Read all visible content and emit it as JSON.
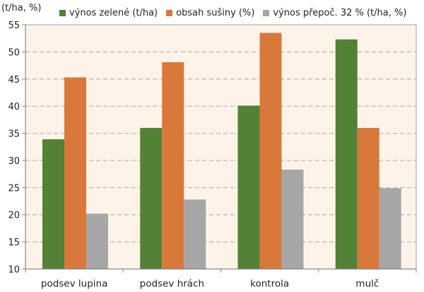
{
  "chart_data": {
    "type": "bar",
    "title": "",
    "xlabel": "",
    "ylabel": "(t/ha, %)",
    "ylim": [
      10,
      55
    ],
    "yticks": [
      10,
      15,
      20,
      25,
      30,
      35,
      40,
      45,
      50,
      55
    ],
    "grid": true,
    "legend_position": "top",
    "categories": [
      "podsev lupina",
      "podsev hrách",
      "kontrola",
      "mulč"
    ],
    "series": [
      {
        "name": "výnos zelené (t/ha)",
        "color": "#538135",
        "values": [
          33.9,
          36.0,
          40.1,
          52.3
        ]
      },
      {
        "name": "obsah sušiny (%)",
        "color": "#d8793b",
        "values": [
          45.3,
          48.1,
          53.5,
          36.0
        ]
      },
      {
        "name": "výnos přepoč. 32 % (t/ha, %)",
        "color": "#a6a6a6",
        "values": [
          20.2,
          22.8,
          28.3,
          24.9
        ]
      }
    ],
    "plot_background": "#fdf3e8"
  }
}
